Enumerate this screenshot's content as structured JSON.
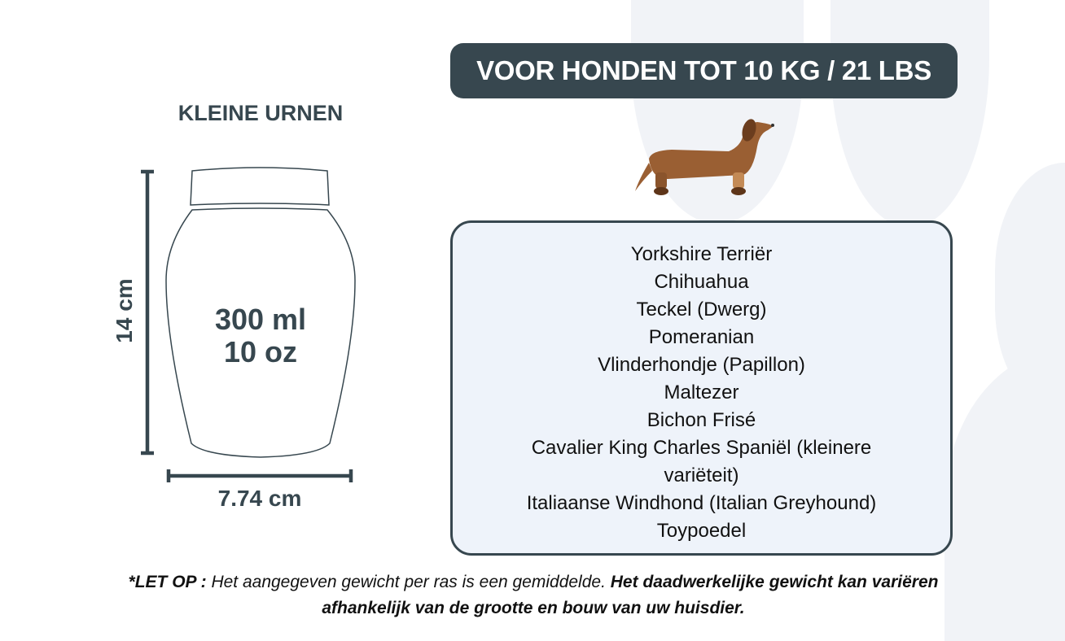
{
  "banner": {
    "title": "VOOR HONDEN TOT 10 KG / 21 LBS"
  },
  "urn": {
    "category": "KLEINE URNEN",
    "volume_ml": "300 ml",
    "volume_oz": "10 oz",
    "height": "14 cm",
    "width": "7.74 cm"
  },
  "breeds": [
    "Yorkshire Terriër",
    "Chihuahua",
    "Teckel (Dwerg)",
    "Pomeranian",
    "Vlinderhondje (Papillon)",
    "Maltezer",
    "Bichon Frisé",
    "Cavalier King Charles Spaniël (kleinere variëteit)",
    "Italiaanse Windhond (Italian Greyhound)",
    "Toypoedel"
  ],
  "note": {
    "label": "*LET OP :",
    "text": " Het aangegeven gewicht per ras is een gemiddelde. ",
    "bold": "Het daadwerkelijke gewicht kan variëren afhankelijk van de grootte en bouw van uw huisdier."
  },
  "colors": {
    "primary": "#37474f",
    "box_fill": "#eef3fa",
    "paw": "#f1f3f7",
    "dog": "#9a5f33"
  },
  "icons": [
    "paw-print-background",
    "dachshund-illustration",
    "urn-outline"
  ]
}
